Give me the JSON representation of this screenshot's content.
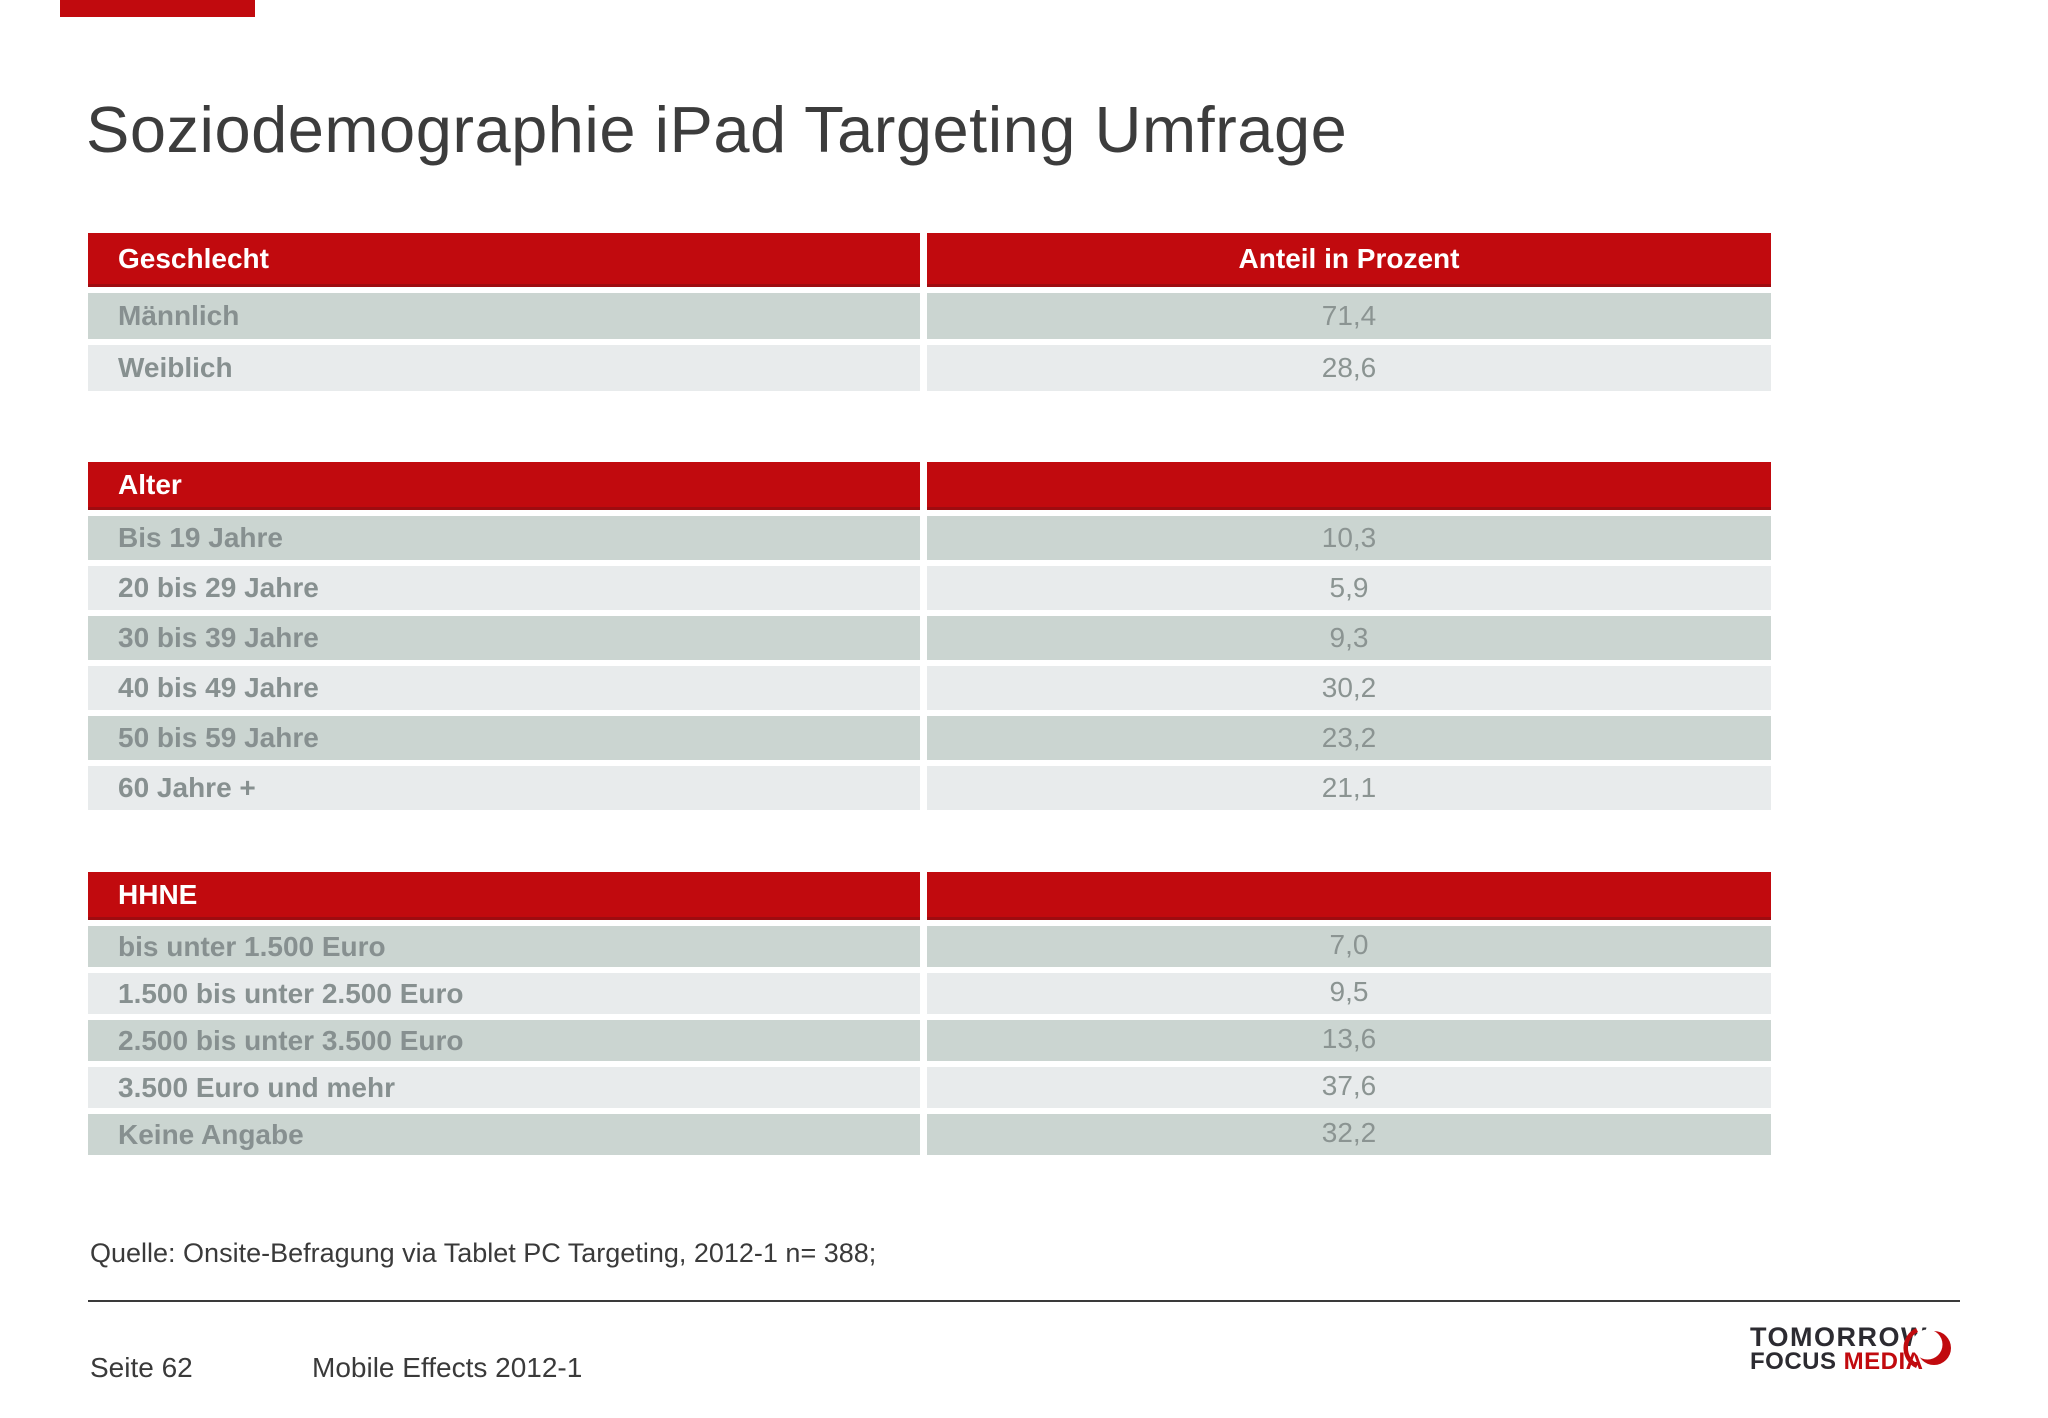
{
  "slide": {
    "title": "Soziodemographie iPad Targeting Umfrage",
    "source_note": "Quelle: Onsite-Befragung via Tablet PC Targeting, 2012-1 n= 388;",
    "footer": {
      "page_label": "Seite 62",
      "report_label": "Mobile Effects 2012-1"
    },
    "logo": {
      "line1": "TOMORROW",
      "line2_dark": "FOCUS",
      "line2_red": "MEDIA"
    },
    "colors": {
      "accent_red": "#c10a0e",
      "accent_red_dark_edge": "#9e0c10",
      "row_dark": "#cbd5d1",
      "row_light": "#e8ebec",
      "row_label_text": "#879090",
      "row_value_text": "#8b9492",
      "title_text": "#3c3c3c",
      "footer_text": "#3a3a3a",
      "logo_dark": "#2c2b31"
    }
  },
  "tables": [
    {
      "id": "geschlecht",
      "header": {
        "label": "Geschlecht",
        "value_label": "Anteil in Prozent"
      },
      "rows": [
        {
          "label": "Männlich",
          "value": "71,4"
        },
        {
          "label": "Weiblich",
          "value": "28,6"
        }
      ]
    },
    {
      "id": "alter",
      "header": {
        "label": "Alter",
        "value_label": ""
      },
      "rows": [
        {
          "label": "Bis 19 Jahre",
          "value": "10,3"
        },
        {
          "label": "20 bis 29 Jahre",
          "value": "5,9"
        },
        {
          "label": "30 bis 39 Jahre",
          "value": "9,3"
        },
        {
          "label": "40 bis 49 Jahre",
          "value": "30,2"
        },
        {
          "label": "50 bis 59 Jahre",
          "value": "23,2"
        },
        {
          "label": "60 Jahre +",
          "value": "21,1"
        }
      ]
    },
    {
      "id": "hhne",
      "header": {
        "label": "HHNE",
        "value_label": ""
      },
      "rows": [
        {
          "label": "bis unter 1.500 Euro",
          "value": "7,0"
        },
        {
          "label": "1.500 bis unter 2.500 Euro",
          "value": "9,5"
        },
        {
          "label": "2.500 bis unter 3.500 Euro",
          "value": "13,6"
        },
        {
          "label": "3.500 Euro und mehr",
          "value": "37,6"
        },
        {
          "label": "Keine Angabe",
          "value": "32,2"
        }
      ]
    }
  ]
}
